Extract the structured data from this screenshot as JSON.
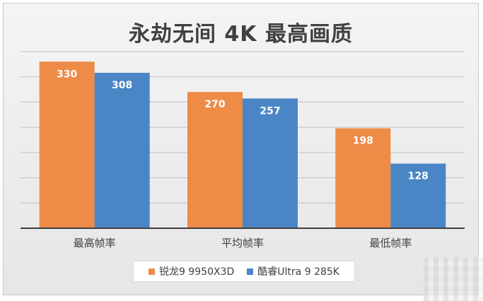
{
  "chart_data": {
    "type": "bar",
    "title": "永劫无间 4K 最高画质",
    "categories": [
      "最高帧率",
      "平均帧率",
      "最低帧率"
    ],
    "series": [
      {
        "name": "锐龙9 9950X3D",
        "values": [
          330,
          270,
          198
        ],
        "color": "#ED8B47"
      },
      {
        "name": "酷睿Ultra 9 285K",
        "values": [
          308,
          257,
          128
        ],
        "color": "#4A86C5"
      }
    ],
    "ylim": [
      0,
      350
    ],
    "grid": true,
    "legend": "bottom",
    "xlabel": "",
    "ylabel": ""
  }
}
